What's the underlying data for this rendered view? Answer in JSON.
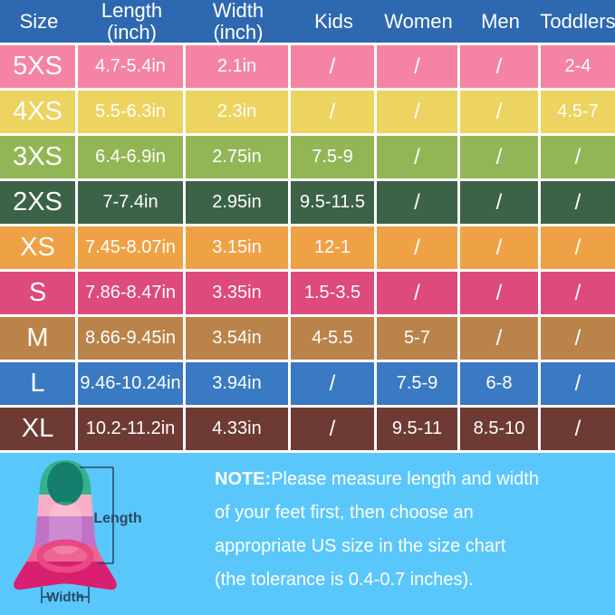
{
  "colors": {
    "header_bg": "#2e68b0",
    "bottom_bg": "#5ac7fb",
    "cell_text": "#ffffff",
    "measure_label": "#2b4965"
  },
  "chart_data": {
    "type": "table",
    "title": "Swim fin size chart",
    "columns": [
      {
        "label": "Size",
        "sub": ""
      },
      {
        "label": "Length",
        "sub": "(inch)"
      },
      {
        "label": "Width",
        "sub": "(inch)"
      },
      {
        "label": "Kids",
        "sub": ""
      },
      {
        "label": "Women",
        "sub": ""
      },
      {
        "label": "Men",
        "sub": ""
      },
      {
        "label": "Toddlers",
        "sub": ""
      }
    ],
    "rows": [
      {
        "size": "5XS",
        "color": "#f583a4",
        "cells": [
          "4.7-5.4in",
          "2.1in",
          "/",
          "/",
          "/",
          "2-4"
        ]
      },
      {
        "size": "4XS",
        "color": "#edd35f",
        "cells": [
          "5.5-6.3in",
          "2.3in",
          "/",
          "/",
          "/",
          "4.5-7"
        ]
      },
      {
        "size": "3XS",
        "color": "#92b656",
        "cells": [
          "6.4-6.9in",
          "2.75in",
          "7.5-9",
          "/",
          "/",
          "/"
        ]
      },
      {
        "size": "2XS",
        "color": "#3c6247",
        "cells": [
          "7-7.4in",
          "2.95in",
          "9.5-11.5",
          "/",
          "/",
          "/"
        ]
      },
      {
        "size": "XS",
        "color": "#efa245",
        "cells": [
          "7.45-8.07in",
          "3.15in",
          "12-1",
          "/",
          "/",
          "/"
        ]
      },
      {
        "size": "S",
        "color": "#dd4a7b",
        "cells": [
          "7.86-8.47in",
          "3.35in",
          "1.5-3.5",
          "/",
          "/",
          "/"
        ]
      },
      {
        "size": "M",
        "color": "#b9834a",
        "cells": [
          "8.66-9.45in",
          "3.54in",
          "4-5.5",
          "5-7",
          "/",
          "/"
        ]
      },
      {
        "size": "L",
        "color": "#3a7ac2",
        "cells": [
          "9.46-10.24in",
          "3.94in",
          "/",
          "7.5-9",
          "6-8",
          "/"
        ]
      },
      {
        "size": "XL",
        "color": "#6e3a34",
        "cells": [
          "10.2-11.2in",
          "4.33in",
          "/",
          "9.5-11",
          "8.5-10",
          "/"
        ]
      }
    ]
  },
  "note": {
    "prefix": "NOTE:",
    "lines": [
      "Please measure length and width",
      "of your feet first, then choose an",
      "appropriate US size in the size chart",
      "(the tolerance is 0.4-0.7 inches)."
    ]
  },
  "fin": {
    "length_label": "Length",
    "width_label": "Width"
  }
}
